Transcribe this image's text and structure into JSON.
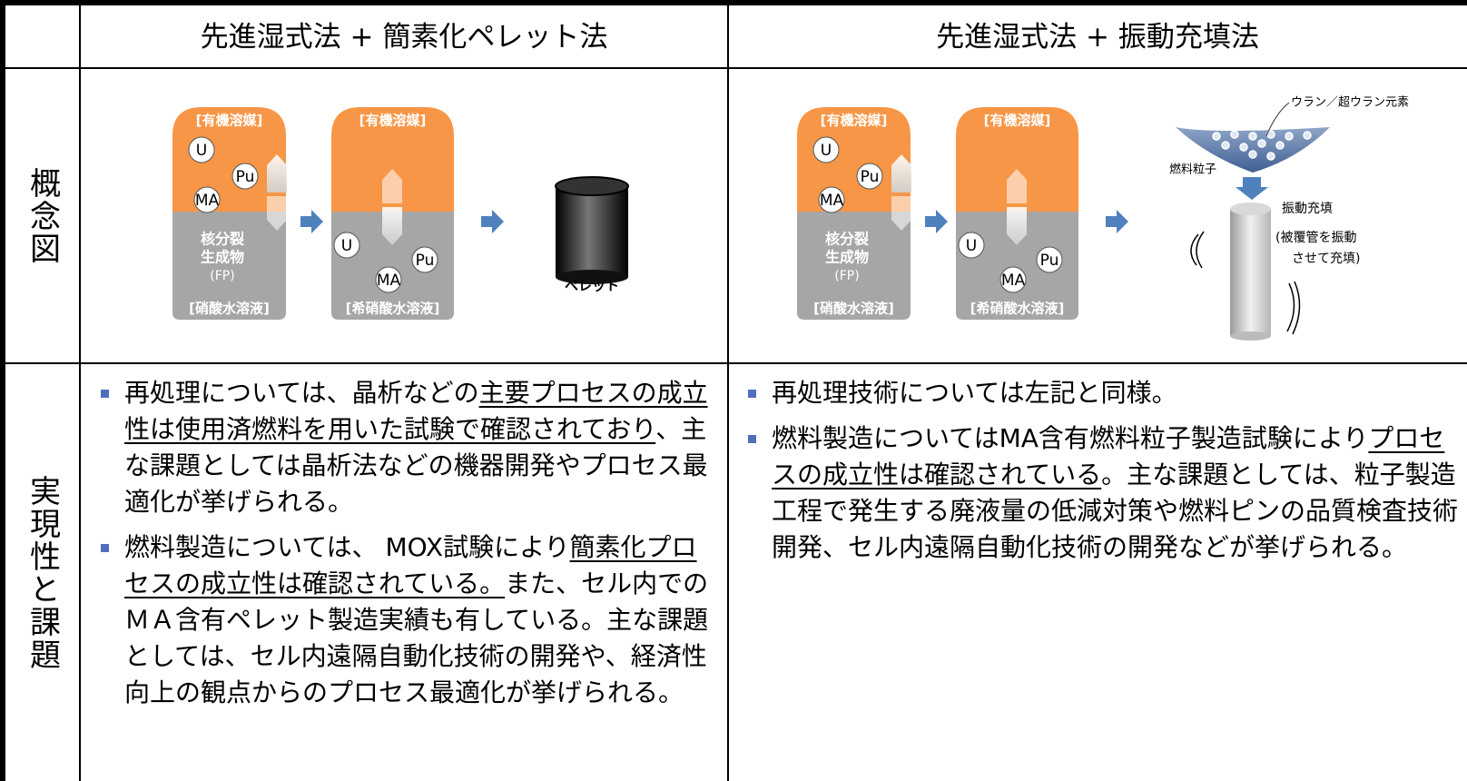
{
  "header": {
    "col1": "先進湿式法 + 簡素化ペレット法",
    "col2": "先進湿式法 + 振動充填法"
  },
  "rows": {
    "concept": "概念図",
    "feasibility": "実現性と課題"
  },
  "diagram": {
    "vessel_top": "[有機溶媒]",
    "vessel_bottom_1": "[硝酸水溶液]",
    "vessel_bottom_2": "[希硝酸水溶液]",
    "elements": [
      "U",
      "Pu",
      "MA"
    ],
    "fp": [
      "核分裂",
      "生成物",
      "(FP)"
    ],
    "pellet": "ペレット",
    "vipac": {
      "material": "ウラン／超ウラン元素",
      "particles": "燃料粒子",
      "method": "振動充填",
      "note": [
        "(被覆管を振動",
        "させて充填)"
      ]
    }
  },
  "left_bullets": [
    [
      {
        "text": "再処理については、晶析などの"
      },
      {
        "text": "主要プロセスの成立性は使用済燃料を用いた試験で確認されており",
        "underline": true
      },
      {
        "text": "、主な課題としては晶析法などの機器開発やプロセス最適化が挙げられる。"
      }
    ],
    [
      {
        "text": "燃料製造については、 MOX試験により"
      },
      {
        "text": "簡素化プロセスの成立性は確認されている。",
        "underline": true
      },
      {
        "text": "また、セル内でのＭＡ含有ペレット製造実績も有している。主な課題としては、セル内遠隔自動化技術の開発や、経済性向上の観点からのプロセス最適化が挙げられる。"
      }
    ]
  ],
  "right_bullets": [
    [
      {
        "text": "再処理技術については左記と同様。"
      }
    ],
    [
      {
        "text": "燃料製造についてはMA含有燃料粒子製造試験により"
      },
      {
        "text": "プロセスの成立性は確認されている",
        "underline": true
      },
      {
        "text": "。主な課題としては、粒子製造工程で発生する廃液量の低減対策や燃料ピンの品質検査技術開発、セル内遠隔自動化技術の開発などが挙げられる。"
      }
    ]
  ]
}
